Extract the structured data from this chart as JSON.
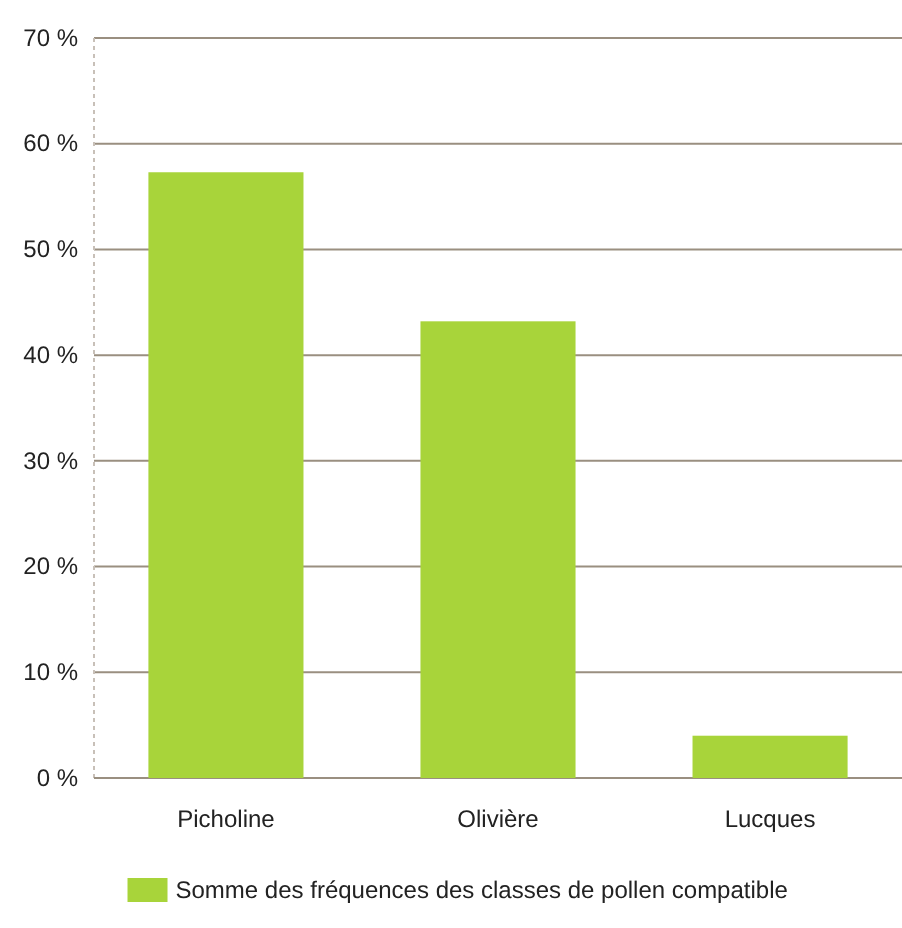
{
  "chart_data": {
    "type": "bar",
    "categories": [
      "Picholine",
      "Olivière",
      "Lucques"
    ],
    "series": [
      {
        "name": "Somme des fréquences des classes de pollen compatible",
        "color": "#a8d43a",
        "values": [
          57.3,
          43.2,
          4
        ]
      }
    ],
    "ylim": [
      0,
      70
    ],
    "yticks": [
      {
        "value": 0,
        "label": "0 %"
      },
      {
        "value": 10,
        "label": "10 %"
      },
      {
        "value": 20,
        "label": "20 %"
      },
      {
        "value": 30,
        "label": "30 %"
      },
      {
        "value": 40,
        "label": "40 %"
      },
      {
        "value": 50,
        "label": "50 %"
      },
      {
        "value": 60,
        "label": "60 %"
      },
      {
        "value": 70,
        "label": "70 %"
      }
    ],
    "grid": "y",
    "legend": "bottom"
  }
}
